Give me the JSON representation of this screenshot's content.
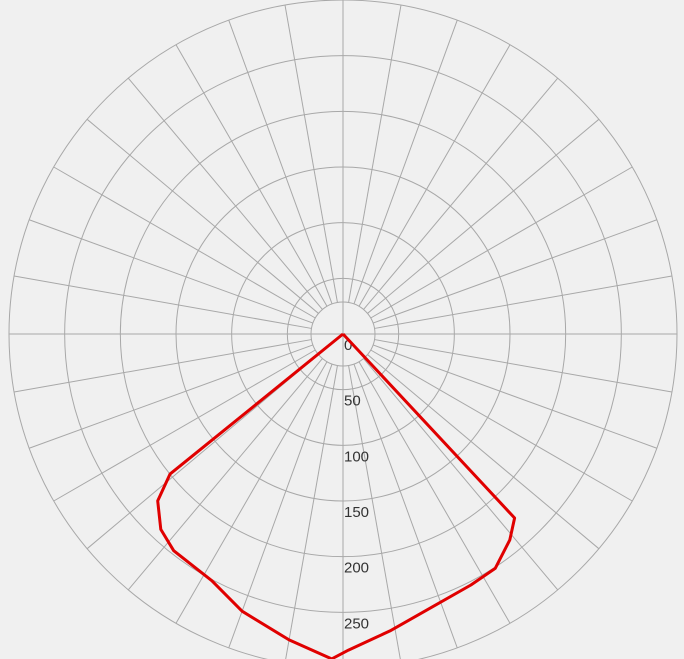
{
  "chart_data": {
    "type": "polar",
    "x": [
      -51,
      -51,
      -48,
      -43,
      -38,
      -28,
      -20,
      -10,
      -2,
      1,
      9,
      18,
      27,
      33,
      39,
      43,
      43
    ],
    "series": [
      {
        "color": "#e00000",
        "values": [
          0,
          200,
          224,
          240,
          247,
          251,
          265,
          279,
          292,
          284,
          270,
          258,
          253,
          251,
          238,
          226,
          0
        ]
      }
    ],
    "rlim": [
      0,
      300
    ],
    "rticks": [
      0,
      50,
      100,
      150,
      200,
      250
    ],
    "grid": true
  }
}
